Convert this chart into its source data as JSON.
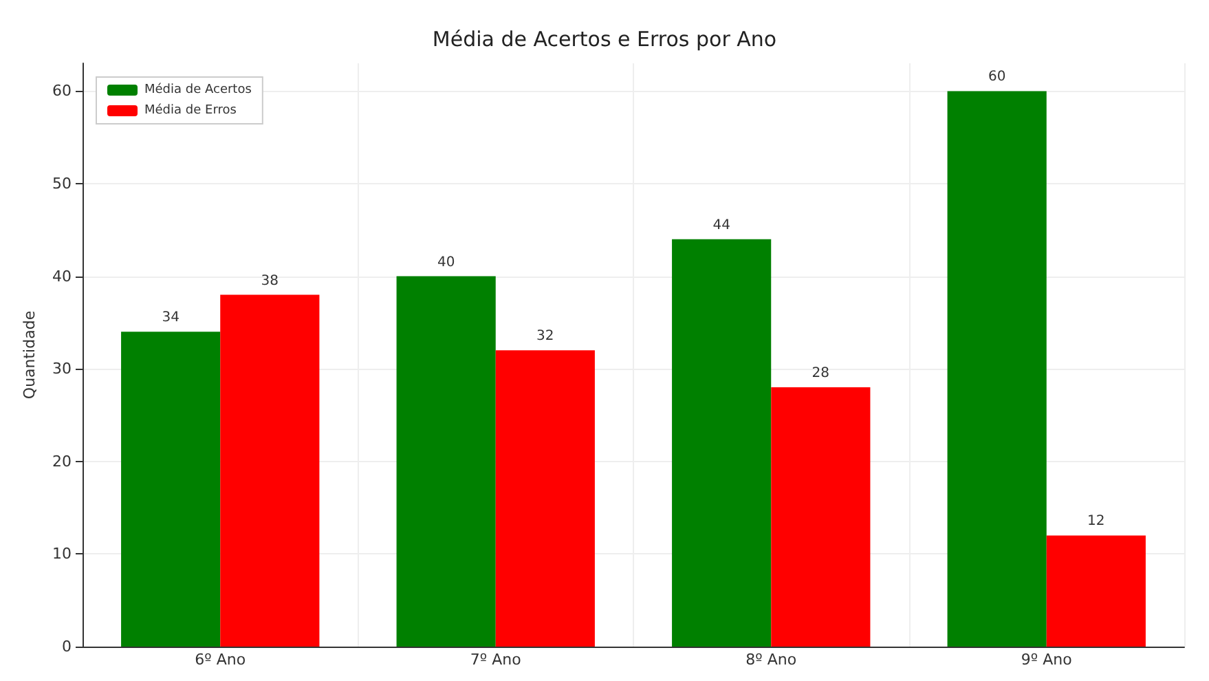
{
  "chart_data": {
    "type": "bar",
    "title": "Média de Acertos e Erros por Ano",
    "ylabel": "Quantidade",
    "categories": [
      "6º Ano",
      "7º Ano",
      "8º Ano",
      "9º Ano"
    ],
    "series": [
      {
        "name": "Média de Acertos",
        "color": "#008000",
        "values": [
          34,
          40,
          44,
          60
        ]
      },
      {
        "name": "Média de Erros",
        "color": "#ff0000",
        "values": [
          38,
          32,
          28,
          12
        ]
      }
    ],
    "ylim": [
      0,
      63
    ],
    "yticks": [
      0,
      10,
      20,
      30,
      40,
      50,
      60
    ],
    "grid": true,
    "legend": "top left",
    "data_labels": true
  }
}
